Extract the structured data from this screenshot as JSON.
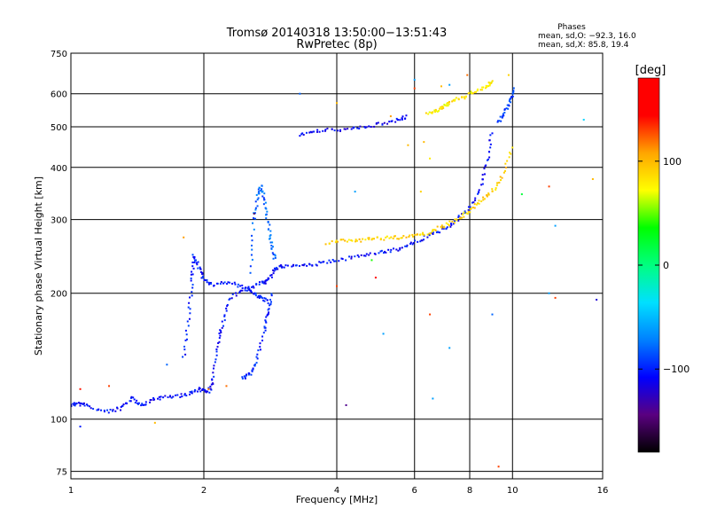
{
  "chart_data": {
    "type": "scatter",
    "title": "Tromsø 20140318 13:50:00−13:51:43",
    "subtitle": "RwPretec (8p)",
    "xlabel": "Frequency [MHz]",
    "ylabel": "Stationary phase Virtual Height [km]",
    "x_scale": "log",
    "y_scale": "log",
    "xlim": [
      1,
      16
    ],
    "ylim": [
      72,
      750
    ],
    "grid": true,
    "x_ticks": [
      1,
      2,
      4,
      6,
      8,
      10,
      16
    ],
    "x_tick_labels": [
      "1",
      "2",
      "4",
      "6",
      "8",
      "10",
      "16"
    ],
    "y_ticks": [
      75,
      100,
      200,
      300,
      400,
      500,
      600,
      750
    ],
    "y_tick_labels": [
      "75",
      "100",
      "200",
      "300",
      "400",
      "500",
      "600",
      "750"
    ],
    "phases_info": {
      "title": "Phases",
      "line1": "mean, sd,O: −92.3, 16.0",
      "line2": "mean, sd,X: 85.8, 19.4"
    },
    "colorbar": {
      "label": "[deg]",
      "range": [
        -180,
        180
      ],
      "ticks": [
        100,
        0,
        -100
      ],
      "tick_labels": [
        "100",
        "0",
        "−100"
      ],
      "stops": [
        "#000000",
        "#5a0080",
        "#0000ff",
        "#0080ff",
        "#00e0ff",
        "#00ff80",
        "#00ff00",
        "#ffff00",
        "#ffa500",
        "#ff0000",
        "#ff0000"
      ]
    },
    "traces": [
      {
        "name": "",
        "phase": -105,
        "points": [
          [
            1.0,
            108
          ],
          [
            1.04,
            109
          ],
          [
            1.08,
            108
          ],
          [
            1.2,
            104
          ],
          [
            1.3,
            106
          ],
          [
            1.38,
            112
          ],
          [
            1.45,
            108
          ],
          [
            1.55,
            112
          ],
          [
            1.7,
            113
          ],
          [
            1.85,
            115
          ],
          [
            1.95,
            118
          ],
          [
            2.05,
            116
          ],
          [
            2.1,
            124
          ],
          [
            2.15,
            150
          ],
          [
            2.2,
            168
          ],
          [
            2.3,
            195
          ],
          [
            2.5,
            205
          ],
          [
            2.7,
            212
          ],
          [
            2.8,
            214
          ],
          [
            2.9,
            230
          ],
          [
            3.0,
            232
          ],
          [
            3.3,
            232
          ],
          [
            3.6,
            235
          ],
          [
            4.0,
            240
          ],
          [
            4.5,
            245
          ],
          [
            5.0,
            250
          ],
          [
            5.5,
            255
          ],
          [
            6.0,
            265
          ],
          [
            6.5,
            275
          ],
          [
            7.0,
            285
          ],
          [
            7.5,
            300
          ],
          [
            8.0,
            320
          ],
          [
            8.5,
            360
          ],
          [
            8.8,
            420
          ],
          [
            9.0,
            490
          ]
        ]
      },
      {
        "name": "",
        "phase": -100,
        "points": [
          [
            1.8,
            140
          ],
          [
            1.85,
            175
          ],
          [
            1.88,
            215
          ],
          [
            1.9,
            245
          ],
          [
            1.95,
            230
          ],
          [
            2.0,
            215
          ],
          [
            2.1,
            210
          ],
          [
            2.3,
            212
          ],
          [
            2.5,
            205
          ],
          [
            2.6,
            200
          ],
          [
            2.7,
            195
          ],
          [
            2.8,
            190
          ]
        ]
      },
      {
        "name": "",
        "phase": -80,
        "points": [
          [
            2.55,
            225
          ],
          [
            2.6,
            300
          ],
          [
            2.65,
            345
          ],
          [
            2.7,
            360
          ],
          [
            2.75,
            330
          ],
          [
            2.8,
            290
          ],
          [
            2.85,
            260
          ],
          [
            2.9,
            240
          ]
        ]
      },
      {
        "name": "",
        "phase": -100,
        "points": [
          [
            2.45,
            125
          ],
          [
            2.55,
            128
          ],
          [
            2.65,
            140
          ],
          [
            2.75,
            165
          ],
          [
            2.8,
            180
          ],
          [
            2.85,
            200
          ]
        ]
      },
      {
        "name": "",
        "phase": 90,
        "points": [
          [
            3.8,
            262
          ],
          [
            4.2,
            268
          ],
          [
            4.6,
            268
          ],
          [
            5.0,
            270
          ],
          [
            5.5,
            272
          ],
          [
            6.0,
            275
          ],
          [
            6.5,
            280
          ],
          [
            7.0,
            290
          ],
          [
            7.5,
            300
          ],
          [
            8.0,
            315
          ],
          [
            8.5,
            335
          ],
          [
            9.0,
            350
          ],
          [
            9.5,
            380
          ],
          [
            10.0,
            450
          ]
        ]
      },
      {
        "name": "",
        "phase": -110,
        "points": [
          [
            3.3,
            480
          ],
          [
            3.6,
            490
          ],
          [
            4.0,
            492
          ],
          [
            4.5,
            498
          ],
          [
            5.0,
            508
          ],
          [
            5.5,
            520
          ],
          [
            5.8,
            528
          ]
        ]
      },
      {
        "name": "",
        "phase": 80,
        "points": [
          [
            6.4,
            540
          ],
          [
            6.8,
            548
          ],
          [
            7.0,
            560
          ],
          [
            7.3,
            575
          ],
          [
            7.8,
            590
          ],
          [
            8.3,
            610
          ],
          [
            8.8,
            630
          ],
          [
            9.0,
            640
          ]
        ]
      },
      {
        "name": "",
        "phase": -90,
        "points": [
          [
            9.3,
            510
          ],
          [
            9.6,
            540
          ],
          [
            9.9,
            580
          ],
          [
            10.1,
            620
          ]
        ]
      }
    ],
    "scattered_points": [
      [
        1.05,
        118,
        140
      ],
      [
        1.05,
        96,
        -100
      ],
      [
        1.22,
        120,
        130
      ],
      [
        1.55,
        98,
        100
      ],
      [
        1.65,
        135,
        -80
      ],
      [
        1.8,
        272,
        110
      ],
      [
        2.05,
        118,
        120
      ],
      [
        2.25,
        120,
        120
      ],
      [
        2.6,
        310,
        -150
      ],
      [
        3.3,
        600,
        -80
      ],
      [
        4.0,
        208,
        130
      ],
      [
        4.0,
        570,
        100
      ],
      [
        4.2,
        108,
        -140
      ],
      [
        4.4,
        350,
        -60
      ],
      [
        4.8,
        240,
        40
      ],
      [
        4.9,
        218,
        160
      ],
      [
        5.1,
        160,
        -60
      ],
      [
        5.3,
        530,
        110
      ],
      [
        5.8,
        452,
        100
      ],
      [
        6.0,
        648,
        -60
      ],
      [
        6.0,
        618,
        130
      ],
      [
        6.2,
        350,
        90
      ],
      [
        6.3,
        460,
        100
      ],
      [
        6.5,
        178,
        130
      ],
      [
        6.5,
        420,
        80
      ],
      [
        6.6,
        112,
        -60
      ],
      [
        6.9,
        625,
        100
      ],
      [
        7.2,
        630,
        -60
      ],
      [
        7.2,
        148,
        -60
      ],
      [
        7.9,
        665,
        120
      ],
      [
        9.0,
        178,
        -80
      ],
      [
        9.3,
        77,
        130
      ],
      [
        9.8,
        665,
        90
      ],
      [
        10.5,
        345,
        20
      ],
      [
        12.1,
        200,
        -60
      ],
      [
        12.1,
        360,
        130
      ],
      [
        12.5,
        290,
        -60
      ],
      [
        12.5,
        195,
        130
      ],
      [
        14.5,
        520,
        -40
      ],
      [
        15.2,
        375,
        100
      ],
      [
        15.5,
        193,
        -120
      ]
    ]
  }
}
